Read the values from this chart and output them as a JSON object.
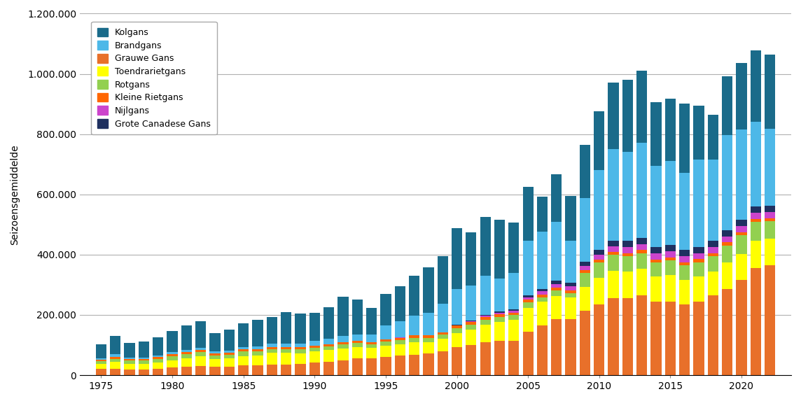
{
  "ylabel": "Seizoensgemiddelde",
  "ylim": [
    0,
    1200000
  ],
  "yticks": [
    0,
    200000,
    400000,
    600000,
    800000,
    1000000,
    1200000
  ],
  "ytick_labels": [
    "0",
    "200.000",
    "400.000",
    "600.000",
    "800.000",
    "1.000.000",
    "1.200.000"
  ],
  "years": [
    1975,
    1976,
    1977,
    1978,
    1979,
    1980,
    1981,
    1982,
    1983,
    1984,
    1985,
    1986,
    1987,
    1988,
    1989,
    1990,
    1991,
    1992,
    1993,
    1994,
    1995,
    1996,
    1997,
    1998,
    1999,
    2000,
    2001,
    2002,
    2003,
    2004,
    2005,
    2006,
    2007,
    2008,
    2009,
    2010,
    2011,
    2012,
    2013,
    2014,
    2015,
    2016,
    2017,
    2018,
    2019,
    2020,
    2021,
    2022
  ],
  "series": {
    "Grauwe Gans": [
      20000,
      22000,
      18000,
      18000,
      20000,
      25000,
      28000,
      30000,
      28000,
      28000,
      32000,
      32000,
      36000,
      36000,
      38000,
      42000,
      45000,
      50000,
      55000,
      55000,
      60000,
      65000,
      68000,
      72000,
      80000,
      92000,
      100000,
      110000,
      115000,
      115000,
      145000,
      165000,
      185000,
      185000,
      215000,
      235000,
      255000,
      255000,
      265000,
      245000,
      245000,
      235000,
      245000,
      265000,
      285000,
      315000,
      355000,
      365000
    ],
    "Toendrarietgans": [
      18000,
      22000,
      20000,
      20000,
      22000,
      25000,
      28000,
      32000,
      26000,
      28000,
      32000,
      33000,
      38000,
      38000,
      35000,
      36000,
      38000,
      38000,
      38000,
      36000,
      38000,
      38000,
      42000,
      38000,
      40000,
      48000,
      52000,
      58000,
      62000,
      68000,
      78000,
      78000,
      78000,
      72000,
      78000,
      88000,
      92000,
      88000,
      88000,
      82000,
      88000,
      82000,
      82000,
      78000,
      88000,
      88000,
      92000,
      88000
    ],
    "Rotgans": [
      8000,
      10000,
      10000,
      10000,
      12000,
      14000,
      14000,
      14000,
      12000,
      12000,
      14000,
      14000,
      13000,
      12000,
      12000,
      12000,
      13000,
      14000,
      13000,
      12000,
      13000,
      13000,
      14000,
      14000,
      14000,
      16000,
      16000,
      16000,
      16000,
      16000,
      18000,
      16000,
      18000,
      16000,
      46000,
      50000,
      52000,
      52000,
      52000,
      48000,
      48000,
      48000,
      48000,
      52000,
      58000,
      62000,
      62000,
      58000
    ],
    "Kleine Rietgans": [
      6000,
      7000,
      6000,
      6000,
      6000,
      7000,
      7000,
      7000,
      7000,
      7000,
      7000,
      7000,
      7000,
      7000,
      7000,
      7000,
      7000,
      7000,
      7000,
      7000,
      8000,
      8000,
      8000,
      8000,
      8000,
      8000,
      9000,
      10000,
      9000,
      9000,
      10000,
      9000,
      9000,
      8000,
      10000,
      10000,
      10000,
      10000,
      10000,
      9000,
      10000,
      10000,
      10000,
      10000,
      10000,
      10000,
      10000,
      10000
    ],
    "Nijlgans": [
      0,
      0,
      0,
      0,
      0,
      0,
      0,
      0,
      0,
      0,
      0,
      0,
      0,
      0,
      0,
      0,
      0,
      0,
      0,
      0,
      500,
      500,
      500,
      500,
      1000,
      2000,
      3000,
      4000,
      5000,
      6000,
      8000,
      10000,
      12000,
      13000,
      14000,
      16000,
      18000,
      20000,
      20000,
      20000,
      20000,
      20000,
      20000,
      20000,
      20000,
      20000,
      20000,
      20000
    ],
    "Grote Canadese Gans": [
      0,
      0,
      0,
      0,
      0,
      0,
      0,
      0,
      0,
      0,
      0,
      0,
      0,
      0,
      0,
      0,
      0,
      0,
      0,
      0,
      0,
      0,
      0,
      0,
      0,
      1000,
      2000,
      3000,
      4000,
      5000,
      7000,
      9000,
      11000,
      13000,
      14000,
      17000,
      19000,
      21000,
      21000,
      21000,
      21000,
      21000,
      21000,
      21000,
      21000,
      21000,
      21000,
      21000
    ],
    "Brandgans": [
      5000,
      8000,
      5000,
      5000,
      5000,
      6000,
      7000,
      8000,
      6000,
      7000,
      9000,
      10000,
      10000,
      12000,
      12000,
      16000,
      18000,
      22000,
      22000,
      25000,
      45000,
      55000,
      65000,
      75000,
      95000,
      120000,
      115000,
      130000,
      110000,
      120000,
      180000,
      190000,
      195000,
      140000,
      210000,
      265000,
      305000,
      295000,
      315000,
      270000,
      280000,
      255000,
      290000,
      270000,
      315000,
      300000,
      280000,
      255000
    ],
    "Kolgans": [
      45000,
      62000,
      48000,
      52000,
      60000,
      70000,
      82000,
      88000,
      60000,
      70000,
      78000,
      88000,
      88000,
      105000,
      100000,
      95000,
      105000,
      130000,
      115000,
      88000,
      105000,
      115000,
      132000,
      150000,
      158000,
      202000,
      178000,
      195000,
      195000,
      168000,
      178000,
      115000,
      158000,
      148000,
      178000,
      195000,
      220000,
      240000,
      240000,
      210000,
      205000,
      230000,
      178000,
      148000,
      195000,
      220000,
      238000,
      248000
    ]
  },
  "series_order": [
    "Grauwe Gans",
    "Toendrarietgans",
    "Rotgans",
    "Kleine Rietgans",
    "Nijlgans",
    "Grote Canadese Gans",
    "Brandgans",
    "Kolgans"
  ],
  "legend_order": [
    "Kolgans",
    "Brandgans",
    "Grauwe Gans",
    "Toendrarietgans",
    "Rotgans",
    "Kleine Rietgans",
    "Nijlgans",
    "Grote Canadese Gans"
  ],
  "colors": {
    "Kolgans": "#1a6b8a",
    "Brandgans": "#4db8e8",
    "Grauwe Gans": "#e8702a",
    "Toendrarietgans": "#ffff00",
    "Rotgans": "#92d050",
    "Kleine Rietgans": "#ff6600",
    "Nijlgans": "#cc44cc",
    "Grote Canadese Gans": "#1f3060"
  },
  "background_color": "#ffffff",
  "grid_color": "#b0b0b0",
  "xticks": [
    1975,
    1980,
    1985,
    1990,
    1995,
    2000,
    2005,
    2010,
    2015,
    2020
  ]
}
